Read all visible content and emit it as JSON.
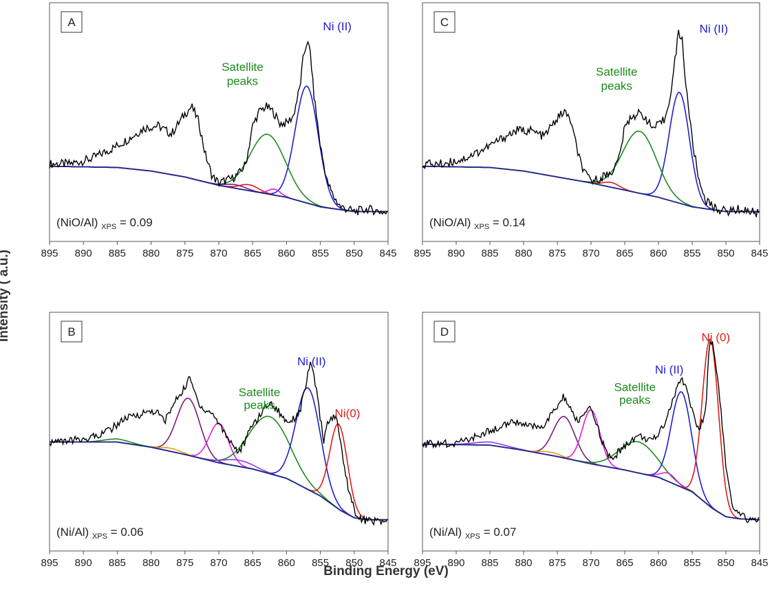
{
  "figure": {
    "ylabel": "Intensity ( a.u.)",
    "xlabel": "Binding Energy (eV)"
  },
  "colors": {
    "raw": "#000000",
    "background": "#1c2a8c",
    "ni_ii": "#1c1cd6",
    "satellite": "#1a8a1a",
    "ni_0": "#e21a1a",
    "magenta": "#e21ae2",
    "purple": "#7a1a7a",
    "violet": "#8a3ae8",
    "orange": "#e89a1a"
  },
  "chart_data": [
    {
      "type": "line",
      "panel_label": "A",
      "xlim": [
        895,
        845
      ],
      "x_ticks": [
        "895",
        "890",
        "885",
        "880",
        "875",
        "870",
        "865",
        "860",
        "855",
        "850",
        "845"
      ],
      "ratio_label": {
        "prefix": "(NiO/Al)",
        "sub": "XPS",
        "suffix": "= 0.09"
      },
      "peak_labels": [
        {
          "text": "Ni (II)",
          "color_key": "ni_ii",
          "x": 852.5,
          "y": 1.52
        },
        {
          "text": "Satellite",
          "color_key": "satellite",
          "x": 866.5,
          "y": 1.18
        },
        {
          "text": "peaks",
          "color_key": "satellite",
          "x": 866.5,
          "y": 1.06
        }
      ],
      "raw": {
        "x": [
          895,
          892,
          889,
          886,
          883,
          881,
          879,
          877,
          875,
          874,
          873,
          872,
          871,
          870,
          869,
          868,
          867,
          866,
          865,
          864,
          863,
          862,
          861,
          860,
          859,
          858,
          857.5,
          857,
          856.5,
          856,
          855,
          854,
          853,
          852,
          851,
          850,
          848,
          846,
          845
        ],
        "y": [
          0.4,
          0.4,
          0.44,
          0.52,
          0.62,
          0.7,
          0.72,
          0.65,
          0.82,
          0.88,
          0.76,
          0.48,
          0.3,
          0.24,
          0.26,
          0.28,
          0.32,
          0.4,
          0.72,
          0.84,
          0.88,
          0.84,
          0.74,
          0.74,
          0.8,
          1.05,
          1.3,
          1.42,
          1.35,
          1.0,
          0.55,
          0.25,
          0.12,
          0.04,
          0.02,
          0.0,
          0.02,
          0.0,
          -0.02
        ]
      },
      "background": {
        "x": [
          895,
          885,
          880,
          875,
          870,
          865,
          860,
          855,
          850,
          845
        ],
        "y": [
          0.38,
          0.37,
          0.34,
          0.29,
          0.22,
          0.17,
          0.12,
          0.04,
          0.0,
          0.0
        ]
      },
      "series": [
        {
          "color_key": "ni_ii",
          "center": 857.0,
          "amp": 0.98,
          "width": 1.7
        },
        {
          "color_key": "satellite",
          "center": 862.8,
          "amp": 0.5,
          "width": 2.6
        },
        {
          "color_key": "ni_0",
          "center": 865.5,
          "amp": 0.05,
          "width": 1.4
        },
        {
          "color_key": "magenta",
          "center": 861.8,
          "amp": 0.05,
          "width": 0.9
        },
        {
          "color_key": "purple",
          "center": 867.5,
          "amp": 0.03,
          "width": 1.5
        }
      ]
    },
    {
      "type": "line",
      "panel_label": "C",
      "xlim": [
        895,
        845
      ],
      "x_ticks": [
        "895",
        "890",
        "885",
        "880",
        "875",
        "870",
        "865",
        "860",
        "855",
        "850",
        "845"
      ],
      "ratio_label": {
        "prefix": "(NiO/Al)",
        "sub": "XPS",
        "suffix": "= 0.14"
      },
      "peak_labels": [
        {
          "text": "Ni (II)",
          "color_key": "ni_ii",
          "x": 851.8,
          "y": 1.5
        },
        {
          "text": "Satellite",
          "color_key": "satellite",
          "x": 866.2,
          "y": 1.14
        },
        {
          "text": "peaks",
          "color_key": "satellite",
          "x": 866.2,
          "y": 1.02
        }
      ],
      "raw": {
        "x": [
          895,
          892,
          889,
          886,
          883,
          881,
          879,
          877,
          875,
          874,
          873,
          872,
          871,
          870,
          869,
          868,
          867,
          866,
          865,
          864,
          863,
          862,
          861,
          860,
          859,
          858,
          857.5,
          857,
          856.5,
          856,
          855,
          854,
          853,
          852,
          851,
          850,
          848,
          846,
          845
        ],
        "y": [
          0.4,
          0.4,
          0.44,
          0.52,
          0.62,
          0.68,
          0.68,
          0.63,
          0.78,
          0.84,
          0.76,
          0.5,
          0.32,
          0.26,
          0.27,
          0.3,
          0.33,
          0.42,
          0.7,
          0.8,
          0.82,
          0.8,
          0.7,
          0.72,
          0.78,
          1.05,
          1.3,
          1.5,
          1.45,
          1.1,
          0.6,
          0.26,
          0.1,
          0.04,
          0.02,
          0.0,
          0.02,
          0.0,
          -0.02
        ]
      },
      "background": {
        "x": [
          895,
          885,
          880,
          875,
          870,
          865,
          860,
          855,
          850,
          845
        ],
        "y": [
          0.38,
          0.37,
          0.34,
          0.29,
          0.24,
          0.18,
          0.12,
          0.04,
          0.0,
          0.0
        ]
      },
      "series": [
        {
          "color_key": "ni_ii",
          "center": 856.9,
          "amp": 0.93,
          "width": 1.5
        },
        {
          "color_key": "satellite",
          "center": 862.8,
          "amp": 0.52,
          "width": 2.5
        },
        {
          "color_key": "ni_0",
          "center": 867.0,
          "amp": 0.04,
          "width": 1.2
        }
      ]
    },
    {
      "type": "line",
      "panel_label": "B",
      "xlim": [
        895,
        845
      ],
      "x_ticks": [
        "895",
        "890",
        "885",
        "880",
        "875",
        "870",
        "865",
        "860",
        "855",
        "850",
        "845"
      ],
      "ratio_label": {
        "prefix": "(Ni/Al)",
        "sub": "XPS",
        "suffix": "= 0.06"
      },
      "peak_labels": [
        {
          "text": "Ni (II)",
          "color_key": "ni_ii",
          "x": 856.3,
          "y": 1.54
        },
        {
          "text": "Satellite",
          "color_key": "satellite",
          "x": 864.0,
          "y": 1.24
        },
        {
          "text": "peaks",
          "color_key": "satellite",
          "x": 864.0,
          "y": 1.12
        },
        {
          "text": "Ni(0)",
          "color_key": "ni_0",
          "x": 851.0,
          "y": 1.04
        }
      ],
      "raw": {
        "x": [
          895,
          892,
          889,
          886,
          884,
          882,
          880,
          879,
          878,
          876,
          875,
          874.5,
          874,
          873,
          872,
          871,
          870,
          869,
          868,
          867,
          866,
          865,
          864,
          863,
          862,
          861,
          860,
          859,
          858,
          857,
          856.5,
          856,
          855,
          854.5,
          854,
          853,
          852.5,
          852,
          851,
          850,
          849,
          847,
          845
        ],
        "y": [
          0.8,
          0.81,
          0.84,
          0.92,
          1.02,
          1.06,
          1.1,
          1.08,
          1.0,
          1.24,
          1.32,
          1.42,
          1.36,
          1.18,
          1.1,
          1.08,
          0.98,
          0.88,
          0.78,
          0.7,
          0.82,
          0.98,
          1.04,
          1.16,
          1.16,
          1.08,
          1.0,
          1.02,
          1.1,
          1.4,
          1.54,
          1.48,
          1.02,
          0.82,
          0.96,
          1.06,
          1.0,
          0.78,
          0.4,
          0.14,
          0.05,
          0.04,
          0.03
        ]
      },
      "background": {
        "x": [
          895,
          885,
          880,
          875,
          870,
          865,
          860,
          855,
          852,
          850,
          848,
          845
        ],
        "y": [
          0.8,
          0.8,
          0.75,
          0.68,
          0.6,
          0.54,
          0.45,
          0.28,
          0.14,
          0.07,
          0.05,
          0.05
        ]
      },
      "series": [
        {
          "color_key": "purple",
          "center": 874.5,
          "amp": 0.55,
          "width": 1.7
        },
        {
          "color_key": "magenta",
          "center": 870.0,
          "amp": 0.38,
          "width": 1.4
        },
        {
          "color_key": "satellite",
          "center": 862.5,
          "amp": 0.55,
          "width": 3.0
        },
        {
          "color_key": "ni_ii",
          "center": 856.8,
          "amp": 0.98,
          "width": 1.8
        },
        {
          "color_key": "ni_0",
          "center": 852.3,
          "amp": 0.82,
          "width": 1.3
        },
        {
          "color_key": "violet",
          "center": 867.0,
          "amp": 0.06,
          "width": 2.2
        },
        {
          "color_key": "orange",
          "center": 877.0,
          "amp": 0.03,
          "width": 1.5
        },
        {
          "color_key": "satellite",
          "center": 885.0,
          "amp": 0.03,
          "width": 2.0
        }
      ]
    },
    {
      "type": "line",
      "panel_label": "D",
      "xlim": [
        895,
        845
      ],
      "x_ticks": [
        "895",
        "890",
        "885",
        "880",
        "875",
        "870",
        "865",
        "860",
        "855",
        "850",
        "845"
      ],
      "ratio_label": {
        "prefix": "(Ni/Al)",
        "sub": "XPS",
        "suffix": "= 0.07"
      },
      "peak_labels": [
        {
          "text": "Ni (0)",
          "color_key": "ni_0",
          "x": 851.5,
          "y": 1.77
        },
        {
          "text": "Ni (II)",
          "color_key": "ni_ii",
          "x": 858.4,
          "y": 1.46
        },
        {
          "text": "Satellite",
          "color_key": "satellite",
          "x": 863.5,
          "y": 1.29
        },
        {
          "text": "peaks",
          "color_key": "satellite",
          "x": 863.5,
          "y": 1.17
        }
      ],
      "raw": {
        "x": [
          895,
          892,
          889,
          886,
          883,
          881,
          879,
          877,
          875,
          874,
          873,
          872,
          871,
          870,
          869,
          868,
          867,
          866,
          865,
          864,
          863,
          862,
          861,
          860,
          859,
          858,
          857,
          856.5,
          856,
          855,
          854,
          853,
          852.5,
          852,
          851,
          850,
          849,
          847,
          845
        ],
        "y": [
          0.78,
          0.78,
          0.8,
          0.88,
          0.96,
          1.0,
          0.94,
          0.96,
          1.14,
          1.24,
          1.1,
          1.0,
          1.06,
          1.12,
          0.94,
          0.74,
          0.62,
          0.7,
          0.76,
          0.82,
          0.86,
          0.84,
          0.8,
          0.88,
          1.0,
          1.18,
          1.36,
          1.4,
          1.36,
          1.1,
          0.9,
          1.1,
          1.72,
          1.78,
          1.3,
          0.56,
          0.14,
          0.06,
          0.05
        ]
      },
      "background": {
        "x": [
          895,
          885,
          880,
          875,
          870,
          865,
          860,
          855,
          852,
          850,
          848,
          845
        ],
        "y": [
          0.78,
          0.77,
          0.72,
          0.66,
          0.59,
          0.53,
          0.46,
          0.32,
          0.16,
          0.08,
          0.06,
          0.05
        ]
      },
      "series": [
        {
          "color_key": "purple",
          "center": 874.0,
          "amp": 0.4,
          "width": 1.6
        },
        {
          "color_key": "magenta",
          "center": 870.0,
          "amp": 0.52,
          "width": 1.3
        },
        {
          "color_key": "satellite",
          "center": 863.0,
          "amp": 0.3,
          "width": 2.8
        },
        {
          "color_key": "ni_ii",
          "center": 856.6,
          "amp": 0.92,
          "width": 1.5
        },
        {
          "color_key": "ni_0",
          "center": 852.3,
          "amp": 1.62,
          "width": 1.2
        },
        {
          "color_key": "magenta",
          "center": 858.5,
          "amp": 0.08,
          "width": 1.1
        },
        {
          "color_key": "violet",
          "center": 885.0,
          "amp": 0.03,
          "width": 2.5
        },
        {
          "color_key": "orange",
          "center": 876.0,
          "amp": 0.03,
          "width": 1.5
        }
      ]
    }
  ]
}
